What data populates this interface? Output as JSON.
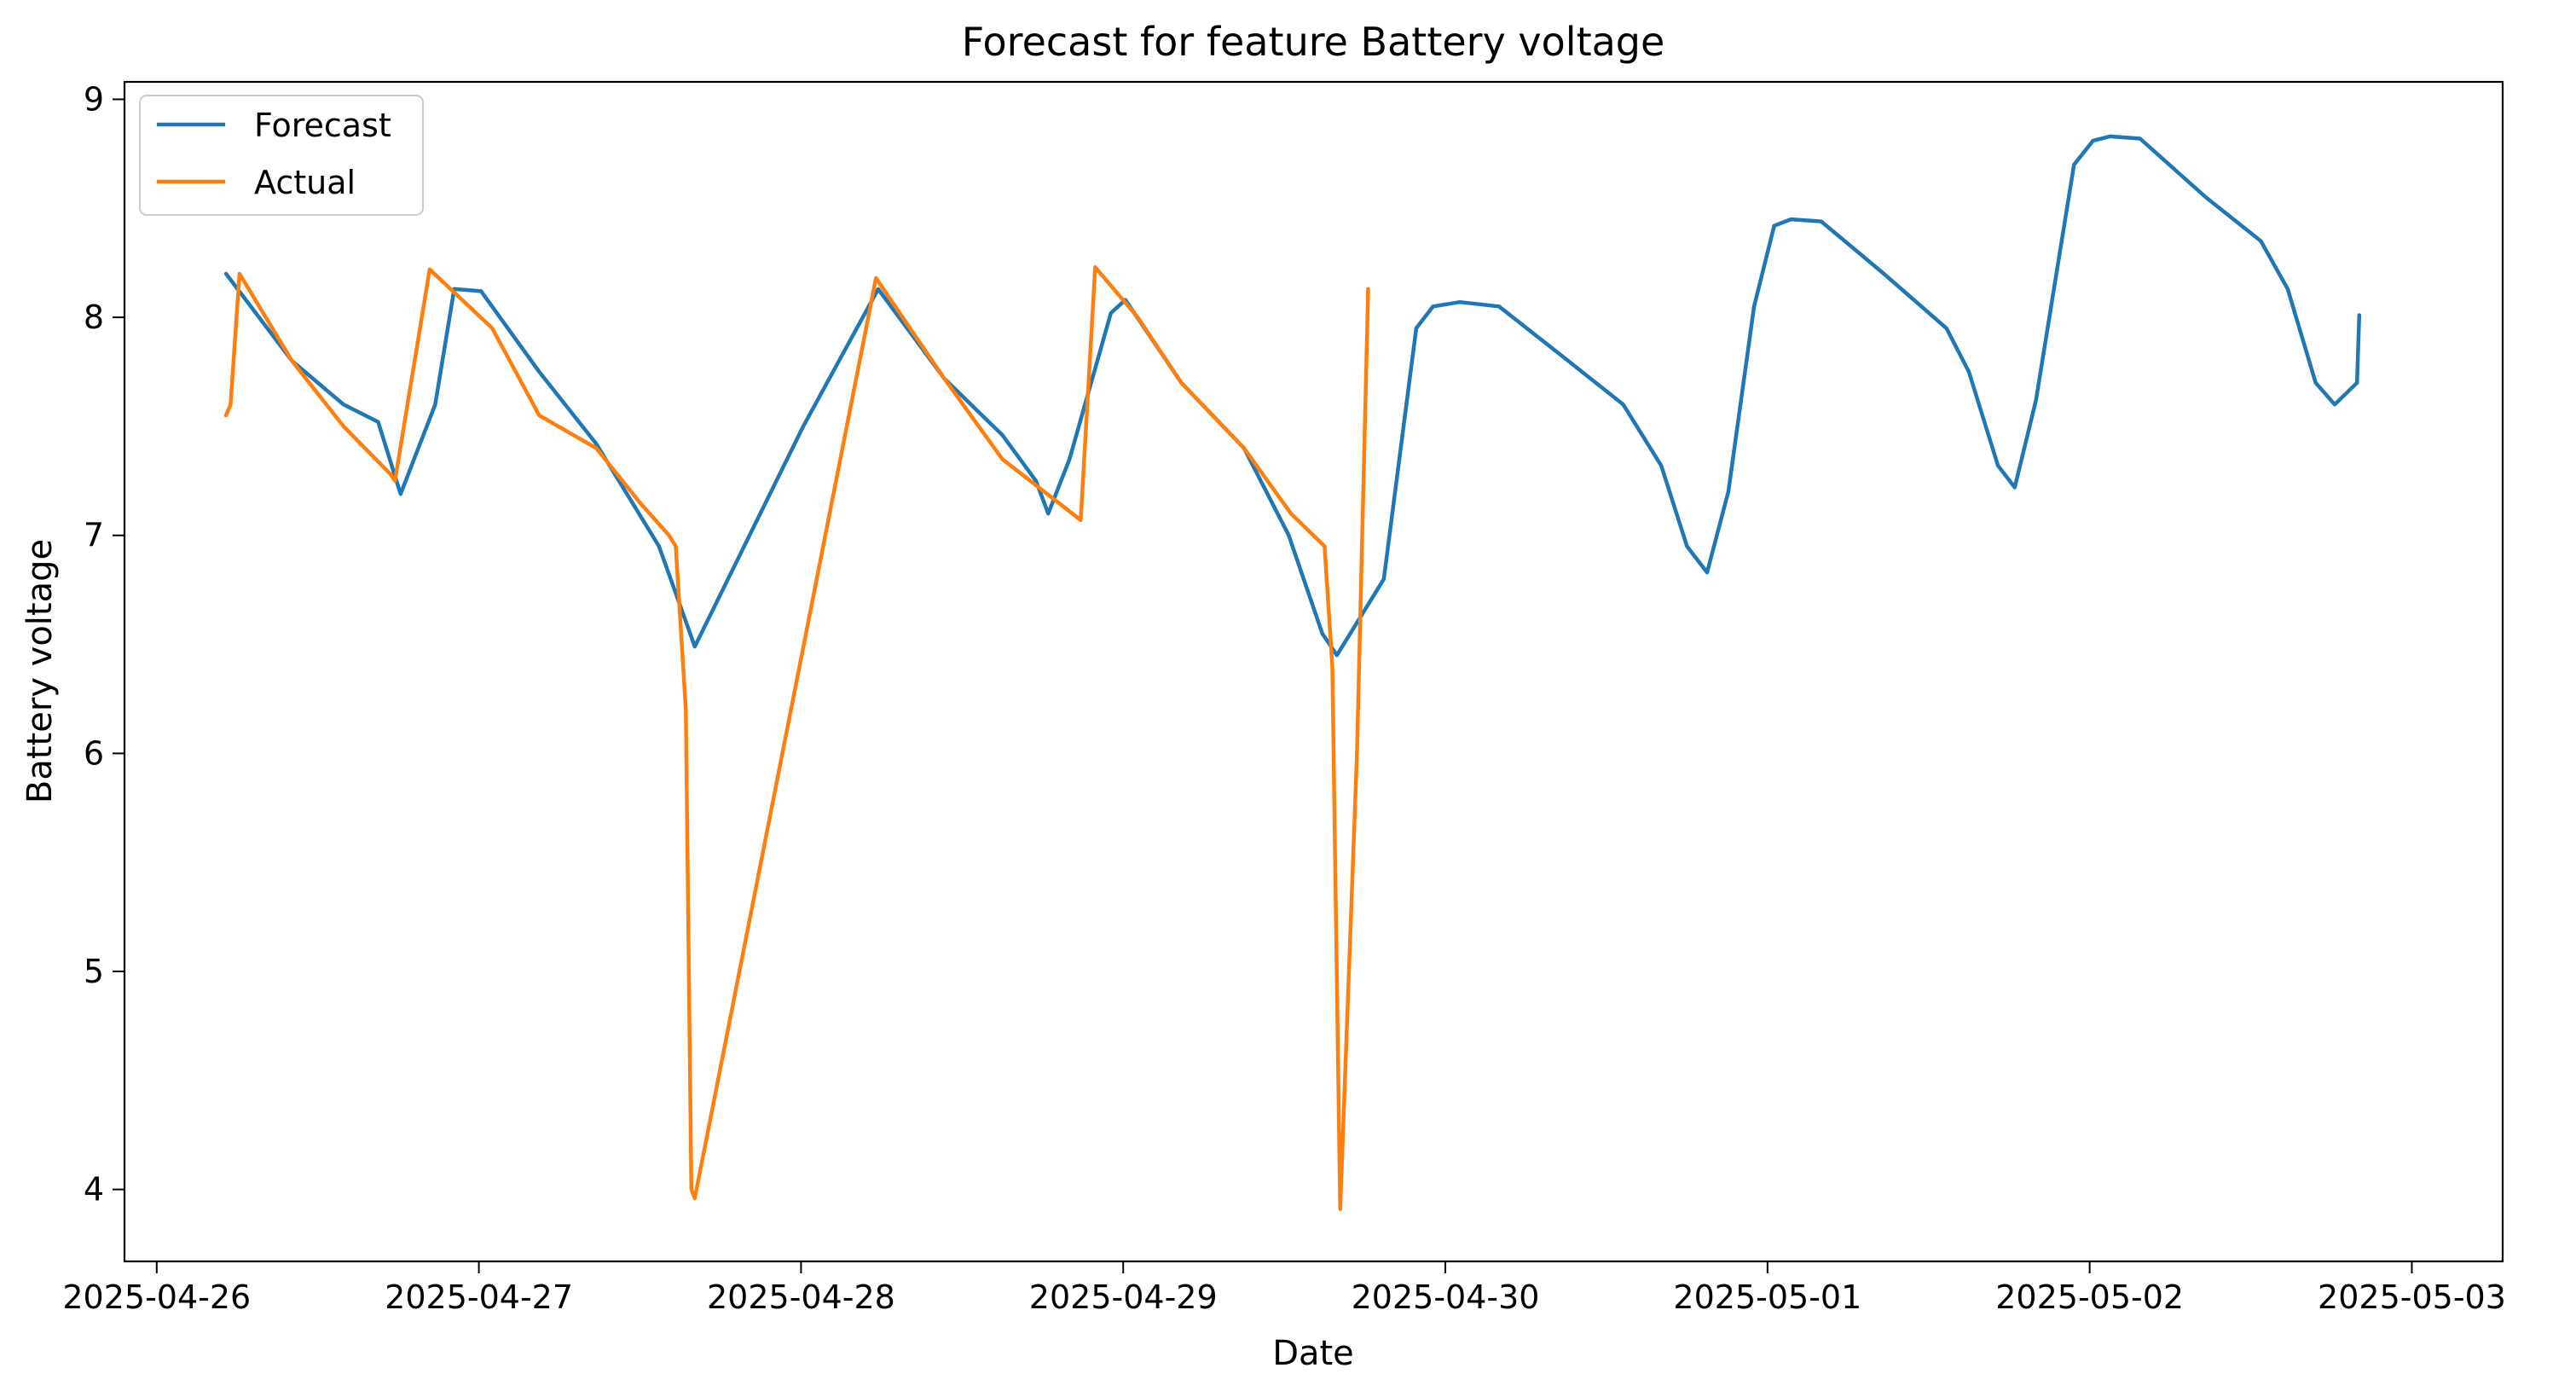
{
  "chart_data": {
    "type": "line",
    "title": "Forecast for feature Battery voltage",
    "xlabel": "Date",
    "ylabel": "Battery voltage",
    "xlim": [
      "2025-04-25T21:36",
      "2025-05-03T06:46"
    ],
    "ylim": [
      3.67,
      9.08
    ],
    "x_ticks": [
      "2025-04-26",
      "2025-04-27",
      "2025-04-28",
      "2025-04-29",
      "2025-04-30",
      "2025-05-01",
      "2025-05-02",
      "2025-05-03"
    ],
    "y_ticks": [
      "4",
      "5",
      "6",
      "7",
      "8",
      "9"
    ],
    "grid": false,
    "legend_position": "top-left",
    "colors": {
      "Forecast": "#1f77b4",
      "Actual": "#ff7f0e"
    },
    "series": [
      {
        "name": "Forecast",
        "points": [
          [
            "2025-04-26T05:10",
            8.2
          ],
          [
            "2025-04-26T10:05",
            7.8
          ],
          [
            "2025-04-26T13:55",
            7.6
          ],
          [
            "2025-04-26T16:30",
            7.52
          ],
          [
            "2025-04-26T18:10",
            7.19
          ],
          [
            "2025-04-26T20:45",
            7.6
          ],
          [
            "2025-04-26T22:10",
            8.13
          ],
          [
            "2025-04-27T00:10",
            8.12
          ],
          [
            "2025-04-27T04:30",
            7.75
          ],
          [
            "2025-04-27T08:45",
            7.42
          ],
          [
            "2025-04-27T13:25",
            6.95
          ],
          [
            "2025-04-27T14:45",
            6.72
          ],
          [
            "2025-04-27T16:05",
            6.49
          ],
          [
            "2025-04-28T00:10",
            7.5
          ],
          [
            "2025-04-28T05:45",
            8.13
          ],
          [
            "2025-04-28T10:40",
            7.72
          ],
          [
            "2025-04-28T15:00",
            7.46
          ],
          [
            "2025-04-28T17:30",
            7.25
          ],
          [
            "2025-04-28T18:25",
            7.1
          ],
          [
            "2025-04-28T20:00",
            7.35
          ],
          [
            "2025-04-28T23:05",
            8.02
          ],
          [
            "2025-04-29T00:10",
            8.08
          ],
          [
            "2025-04-29T04:20",
            7.7
          ],
          [
            "2025-04-29T09:00",
            7.4
          ],
          [
            "2025-04-29T12:20",
            7.0
          ],
          [
            "2025-04-29T14:50",
            6.55
          ],
          [
            "2025-04-29T15:55",
            6.45
          ],
          [
            "2025-04-29T19:25",
            6.8
          ],
          [
            "2025-04-29T21:50",
            7.95
          ],
          [
            "2025-04-29T23:05",
            8.05
          ],
          [
            "2025-04-30T01:05",
            8.07
          ],
          [
            "2025-04-30T04:00",
            8.05
          ],
          [
            "2025-04-30T08:45",
            7.82
          ],
          [
            "2025-04-30T13:15",
            7.6
          ],
          [
            "2025-04-30T16:05",
            7.32
          ],
          [
            "2025-04-30T18:00",
            6.95
          ],
          [
            "2025-04-30T19:30",
            6.83
          ],
          [
            "2025-04-30T21:05",
            7.2
          ],
          [
            "2025-04-30T23:00",
            8.05
          ],
          [
            "2025-05-01T00:30",
            8.42
          ],
          [
            "2025-05-01T01:45",
            8.45
          ],
          [
            "2025-05-01T04:00",
            8.44
          ],
          [
            "2025-05-01T08:40",
            8.2
          ],
          [
            "2025-05-01T13:20",
            7.95
          ],
          [
            "2025-05-01T15:00",
            7.75
          ],
          [
            "2025-05-01T17:10",
            7.32
          ],
          [
            "2025-05-01T18:25",
            7.22
          ],
          [
            "2025-05-01T20:00",
            7.62
          ],
          [
            "2025-05-01T22:50",
            8.7
          ],
          [
            "2025-05-02T00:15",
            8.81
          ],
          [
            "2025-05-02T01:30",
            8.83
          ],
          [
            "2025-05-02T03:45",
            8.82
          ],
          [
            "2025-05-02T08:40",
            8.55
          ],
          [
            "2025-05-02T12:45",
            8.35
          ],
          [
            "2025-05-02T14:45",
            8.13
          ],
          [
            "2025-05-02T16:50",
            7.7
          ],
          [
            "2025-05-02T18:15",
            7.6
          ],
          [
            "2025-05-02T19:55",
            7.7
          ],
          [
            "2025-05-02T20:05",
            8.01
          ]
        ]
      },
      {
        "name": "Actual",
        "points": [
          [
            "2025-04-26T05:10",
            7.55
          ],
          [
            "2025-04-26T05:30",
            7.6
          ],
          [
            "2025-04-26T06:10",
            8.2
          ],
          [
            "2025-04-26T10:05",
            7.8
          ],
          [
            "2025-04-26T13:55",
            7.5
          ],
          [
            "2025-04-26T17:25",
            7.28
          ],
          [
            "2025-04-26T17:45",
            7.25
          ],
          [
            "2025-04-26T20:20",
            8.22
          ],
          [
            "2025-04-27T01:00",
            7.95
          ],
          [
            "2025-04-27T04:30",
            7.55
          ],
          [
            "2025-04-27T08:45",
            7.4
          ],
          [
            "2025-04-27T12:00",
            7.15
          ],
          [
            "2025-04-27T14:10",
            7.0
          ],
          [
            "2025-04-27T14:40",
            6.95
          ],
          [
            "2025-04-27T15:25",
            6.2
          ],
          [
            "2025-04-27T15:50",
            4.0
          ],
          [
            "2025-04-27T16:05",
            3.96
          ],
          [
            "2025-04-28T05:35",
            8.18
          ],
          [
            "2025-04-28T10:40",
            7.72
          ],
          [
            "2025-04-28T15:00",
            7.35
          ],
          [
            "2025-04-28T20:50",
            7.07
          ],
          [
            "2025-04-28T21:55",
            8.23
          ],
          [
            "2025-04-29T01:05",
            8.0
          ],
          [
            "2025-04-29T04:20",
            7.7
          ],
          [
            "2025-04-29T09:00",
            7.4
          ],
          [
            "2025-04-29T12:30",
            7.1
          ],
          [
            "2025-04-29T15:00",
            6.95
          ],
          [
            "2025-04-29T15:35",
            6.4
          ],
          [
            "2025-04-29T16:10",
            3.91
          ],
          [
            "2025-04-29T17:25",
            6.0
          ],
          [
            "2025-04-29T18:15",
            8.13
          ]
        ]
      }
    ]
  }
}
